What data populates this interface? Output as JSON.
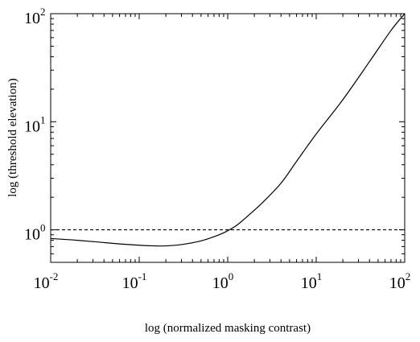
{
  "chart_data": {
    "type": "line",
    "title": "",
    "xlabel": "log (normalized masking contrast)",
    "ylabel": "log (threshold elevation)",
    "x_scale": "log",
    "y_scale": "log",
    "xlim": [
      0.01,
      100
    ],
    "ylim": [
      0.5,
      100
    ],
    "grid": false,
    "x_ticks": [
      {
        "value": 0.01,
        "base": "10",
        "exp": "-2"
      },
      {
        "value": 0.1,
        "base": "10",
        "exp": "-1"
      },
      {
        "value": 1,
        "base": "10",
        "exp": "0"
      },
      {
        "value": 10,
        "base": "10",
        "exp": "1"
      },
      {
        "value": 100,
        "base": "10",
        "exp": "2"
      }
    ],
    "y_ticks": [
      {
        "value": 1,
        "base": "10",
        "exp": "0"
      },
      {
        "value": 10,
        "base": "10",
        "exp": "1"
      },
      {
        "value": 100,
        "base": "10",
        "exp": "2"
      }
    ],
    "series": [
      {
        "style": "solid",
        "x": [
          0.01,
          0.02,
          0.05,
          0.1,
          0.15,
          0.2,
          0.3,
          0.5,
          0.8,
          1.0,
          1.3,
          1.7,
          2.5,
          4,
          6,
          10,
          20,
          40,
          70,
          100
        ],
        "y": [
          0.83,
          0.8,
          0.75,
          0.72,
          0.71,
          0.71,
          0.73,
          0.79,
          0.9,
          0.98,
          1.12,
          1.35,
          1.8,
          2.7,
          4.3,
          7.7,
          16,
          36,
          70,
          100
        ]
      },
      {
        "style": "dashed",
        "x": [
          0.01,
          100
        ],
        "y": [
          1,
          1
        ]
      }
    ]
  }
}
